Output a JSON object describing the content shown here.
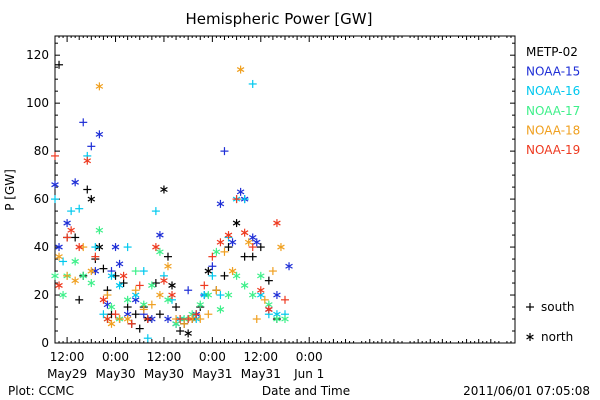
{
  "chart_data": {
    "type": "scatter",
    "title": "Hemispheric Power [GW]",
    "ylabel": "P [GW]",
    "xlabel": "Date and Time",
    "ylim": [
      0,
      128
    ],
    "yticks": [
      0,
      20,
      40,
      60,
      80,
      100,
      120
    ],
    "xlim_hours": [
      -3,
      111
    ],
    "xticks": [
      {
        "t": "12:00",
        "d": "May29",
        "h": 0
      },
      {
        "t": "0:00",
        "d": "May30",
        "h": 12
      },
      {
        "t": "12:00",
        "d": "May30",
        "h": 24
      },
      {
        "t": "0:00",
        "d": "May31",
        "h": 36
      },
      {
        "t": "12:00",
        "d": "May31",
        "h": 48
      },
      {
        "t": "0:00",
        "d": "Jun 1",
        "h": 60
      }
    ],
    "grid": false,
    "legend_position": "right",
    "series": [
      {
        "name": "METP-02",
        "color": "#000000",
        "points": [
          [
            -4,
            34,
            "s"
          ],
          [
            -2,
            116,
            "s"
          ],
          [
            0,
            44,
            "s"
          ],
          [
            2,
            44,
            "s"
          ],
          [
            3,
            18,
            "s"
          ],
          [
            4,
            28,
            "s"
          ],
          [
            5,
            64,
            "s"
          ],
          [
            6,
            60,
            "n"
          ],
          [
            7,
            35,
            "s"
          ],
          [
            8,
            40,
            "n"
          ],
          [
            9,
            31,
            "s"
          ],
          [
            10,
            22,
            "s"
          ],
          [
            11,
            12,
            "s"
          ],
          [
            12,
            28,
            "s"
          ],
          [
            13,
            10,
            "s"
          ],
          [
            14,
            25,
            "s"
          ],
          [
            15,
            15,
            "s"
          ],
          [
            16,
            8,
            "s"
          ],
          [
            17,
            12,
            "s"
          ],
          [
            18,
            6,
            "s"
          ],
          [
            19,
            15,
            "s"
          ],
          [
            20,
            10,
            "n"
          ],
          [
            22,
            25,
            "s"
          ],
          [
            23,
            12,
            "s"
          ],
          [
            24,
            64,
            "n"
          ],
          [
            25,
            36,
            "s"
          ],
          [
            26,
            24,
            "n"
          ],
          [
            27,
            15,
            "s"
          ],
          [
            28,
            5,
            "s"
          ],
          [
            29,
            8,
            "s"
          ],
          [
            30,
            4,
            "n"
          ],
          [
            31,
            10,
            "s"
          ],
          [
            33,
            15,
            "s"
          ],
          [
            35,
            30,
            "n"
          ],
          [
            37,
            22,
            "s"
          ],
          [
            39,
            28,
            "s"
          ],
          [
            40,
            40,
            "s"
          ],
          [
            42,
            50,
            "n"
          ],
          [
            44,
            36,
            "s"
          ],
          [
            46,
            36,
            "s"
          ],
          [
            48,
            40,
            "s"
          ],
          [
            50,
            26,
            "s"
          ],
          [
            52,
            10,
            "s"
          ]
        ]
      },
      {
        "name": "NOAA-15",
        "color": "#1e2ed6",
        "points": [
          [
            -5,
            64,
            "n"
          ],
          [
            -4,
            92,
            "s"
          ],
          [
            -3,
            66,
            "n"
          ],
          [
            -2,
            40,
            "n"
          ],
          [
            0,
            50,
            "n"
          ],
          [
            2,
            67,
            "n"
          ],
          [
            4,
            92,
            "s"
          ],
          [
            6,
            82,
            "s"
          ],
          [
            7,
            30,
            "n"
          ],
          [
            8,
            87,
            "n"
          ],
          [
            10,
            16,
            "n"
          ],
          [
            11,
            30,
            "s"
          ],
          [
            12,
            40,
            "n"
          ],
          [
            13,
            33,
            "n"
          ],
          [
            15,
            12,
            "n"
          ],
          [
            17,
            18,
            "n"
          ],
          [
            19,
            12,
            "s"
          ],
          [
            21,
            10,
            "n"
          ],
          [
            23,
            45,
            "n"
          ],
          [
            25,
            10,
            "n"
          ],
          [
            27,
            8,
            "n"
          ],
          [
            30,
            22,
            "s"
          ],
          [
            32,
            12,
            "n"
          ],
          [
            34,
            20,
            "s"
          ],
          [
            36,
            32,
            "s"
          ],
          [
            38,
            58,
            "n"
          ],
          [
            39,
            80,
            "s"
          ],
          [
            41,
            42,
            "n"
          ],
          [
            43,
            63,
            "n"
          ],
          [
            44,
            60,
            "n"
          ],
          [
            46,
            44,
            "n"
          ],
          [
            47,
            42,
            "n"
          ],
          [
            50,
            14,
            "n"
          ],
          [
            52,
            20,
            "n"
          ],
          [
            55,
            32,
            "n"
          ]
        ]
      },
      {
        "name": "NOAA-16",
        "color": "#00c8ee",
        "points": [
          [
            -5,
            38,
            "s"
          ],
          [
            -4,
            50,
            "n"
          ],
          [
            -3,
            60,
            "s"
          ],
          [
            -1,
            34,
            "s"
          ],
          [
            1,
            55,
            "s"
          ],
          [
            3,
            56,
            "s"
          ],
          [
            5,
            78,
            "s"
          ],
          [
            7,
            40,
            "s"
          ],
          [
            9,
            12,
            "s"
          ],
          [
            11,
            28,
            "n"
          ],
          [
            13,
            24,
            "n"
          ],
          [
            15,
            40,
            "s"
          ],
          [
            17,
            20,
            "n"
          ],
          [
            19,
            30,
            "s"
          ],
          [
            20,
            2,
            "s"
          ],
          [
            22,
            55,
            "s"
          ],
          [
            24,
            28,
            "s"
          ],
          [
            26,
            18,
            "s"
          ],
          [
            28,
            10,
            "n"
          ],
          [
            30,
            10,
            "s"
          ],
          [
            32,
            10,
            "n"
          ],
          [
            34,
            20,
            "n"
          ],
          [
            36,
            28,
            "s"
          ],
          [
            38,
            20,
            "s"
          ],
          [
            40,
            44,
            "s"
          ],
          [
            42,
            60,
            "n"
          ],
          [
            44,
            60,
            "s"
          ],
          [
            46,
            108,
            "s"
          ],
          [
            48,
            20,
            "n"
          ],
          [
            50,
            12,
            "s"
          ],
          [
            52,
            12,
            "n"
          ],
          [
            54,
            12,
            "s"
          ]
        ]
      },
      {
        "name": "NOAA-17",
        "color": "#3ef08a",
        "points": [
          [
            -5,
            42,
            "s"
          ],
          [
            -4,
            28,
            "n"
          ],
          [
            -3,
            28,
            "n"
          ],
          [
            -1,
            20,
            "n"
          ],
          [
            0,
            28,
            "n"
          ],
          [
            2,
            34,
            "n"
          ],
          [
            4,
            28,
            "n"
          ],
          [
            6,
            25,
            "n"
          ],
          [
            8,
            47,
            "n"
          ],
          [
            10,
            10,
            "n"
          ],
          [
            11,
            15,
            "n"
          ],
          [
            13,
            10,
            "n"
          ],
          [
            15,
            18,
            "n"
          ],
          [
            17,
            30,
            "s"
          ],
          [
            19,
            16,
            "n"
          ],
          [
            21,
            24,
            "n"
          ],
          [
            23,
            38,
            "n"
          ],
          [
            25,
            18,
            "n"
          ],
          [
            27,
            8,
            "n"
          ],
          [
            29,
            10,
            "n"
          ],
          [
            31,
            12,
            "n"
          ],
          [
            33,
            16,
            "n"
          ],
          [
            35,
            20,
            "n"
          ],
          [
            37,
            38,
            "n"
          ],
          [
            38,
            14,
            "n"
          ],
          [
            40,
            20,
            "n"
          ],
          [
            42,
            28,
            "n"
          ],
          [
            44,
            24,
            "n"
          ],
          [
            46,
            20,
            "n"
          ],
          [
            48,
            28,
            "n"
          ],
          [
            50,
            16,
            "n"
          ],
          [
            52,
            10,
            "n"
          ],
          [
            54,
            10,
            "n"
          ]
        ]
      },
      {
        "name": "NOAA-18",
        "color": "#f0a020",
        "points": [
          [
            -5,
            46,
            "n"
          ],
          [
            -4,
            26,
            "s"
          ],
          [
            -2,
            36,
            "n"
          ],
          [
            0,
            28,
            "s"
          ],
          [
            2,
            26,
            "n"
          ],
          [
            4,
            40,
            "s"
          ],
          [
            6,
            30,
            "n"
          ],
          [
            8,
            107,
            "n"
          ],
          [
            10,
            20,
            "s"
          ],
          [
            11,
            8,
            "n"
          ],
          [
            13,
            10,
            "s"
          ],
          [
            15,
            10,
            "n"
          ],
          [
            17,
            22,
            "s"
          ],
          [
            19,
            14,
            "s"
          ],
          [
            21,
            16,
            "s"
          ],
          [
            23,
            20,
            "n"
          ],
          [
            25,
            32,
            "n"
          ],
          [
            27,
            10,
            "s"
          ],
          [
            29,
            8,
            "s"
          ],
          [
            31,
            10,
            "n"
          ],
          [
            33,
            10,
            "s"
          ],
          [
            35,
            12,
            "s"
          ],
          [
            37,
            22,
            "s"
          ],
          [
            39,
            38,
            "s"
          ],
          [
            41,
            30,
            "n"
          ],
          [
            43,
            114,
            "n"
          ],
          [
            45,
            42,
            "n"
          ],
          [
            47,
            10,
            "s"
          ],
          [
            49,
            18,
            "s"
          ],
          [
            51,
            30,
            "s"
          ],
          [
            53,
            40,
            "n"
          ]
        ]
      },
      {
        "name": "NOAA-19",
        "color": "#ee3a20",
        "points": [
          [
            -4,
            60,
            "n"
          ],
          [
            -3,
            78,
            "s"
          ],
          [
            -2,
            24,
            "n"
          ],
          [
            0,
            44,
            "s"
          ],
          [
            1,
            47,
            "n"
          ],
          [
            3,
            40,
            "n"
          ],
          [
            5,
            76,
            "n"
          ],
          [
            7,
            36,
            "s"
          ],
          [
            9,
            18,
            "n"
          ],
          [
            10,
            10,
            "n"
          ],
          [
            12,
            12,
            "s"
          ],
          [
            14,
            28,
            "n"
          ],
          [
            16,
            8,
            "s"
          ],
          [
            18,
            24,
            "s"
          ],
          [
            20,
            10,
            "s"
          ],
          [
            22,
            40,
            "n"
          ],
          [
            24,
            26,
            "n"
          ],
          [
            26,
            20,
            "n"
          ],
          [
            28,
            10,
            "s"
          ],
          [
            30,
            10,
            "s"
          ],
          [
            32,
            12,
            "s"
          ],
          [
            34,
            24,
            "s"
          ],
          [
            36,
            36,
            "s"
          ],
          [
            38,
            42,
            "n"
          ],
          [
            40,
            45,
            "n"
          ],
          [
            42,
            60,
            "s"
          ],
          [
            44,
            46,
            "n"
          ],
          [
            46,
            40,
            "s"
          ],
          [
            48,
            22,
            "n"
          ],
          [
            50,
            14,
            "n"
          ],
          [
            52,
            50,
            "n"
          ],
          [
            54,
            18,
            "s"
          ]
        ]
      }
    ],
    "symbol_legend": [
      {
        "sym": "+",
        "label": "south"
      },
      {
        "sym": "*",
        "label": "north"
      }
    ]
  },
  "footer": {
    "left": "Plot: CCMC",
    "right": "2011/06/01 07:05:08"
  }
}
